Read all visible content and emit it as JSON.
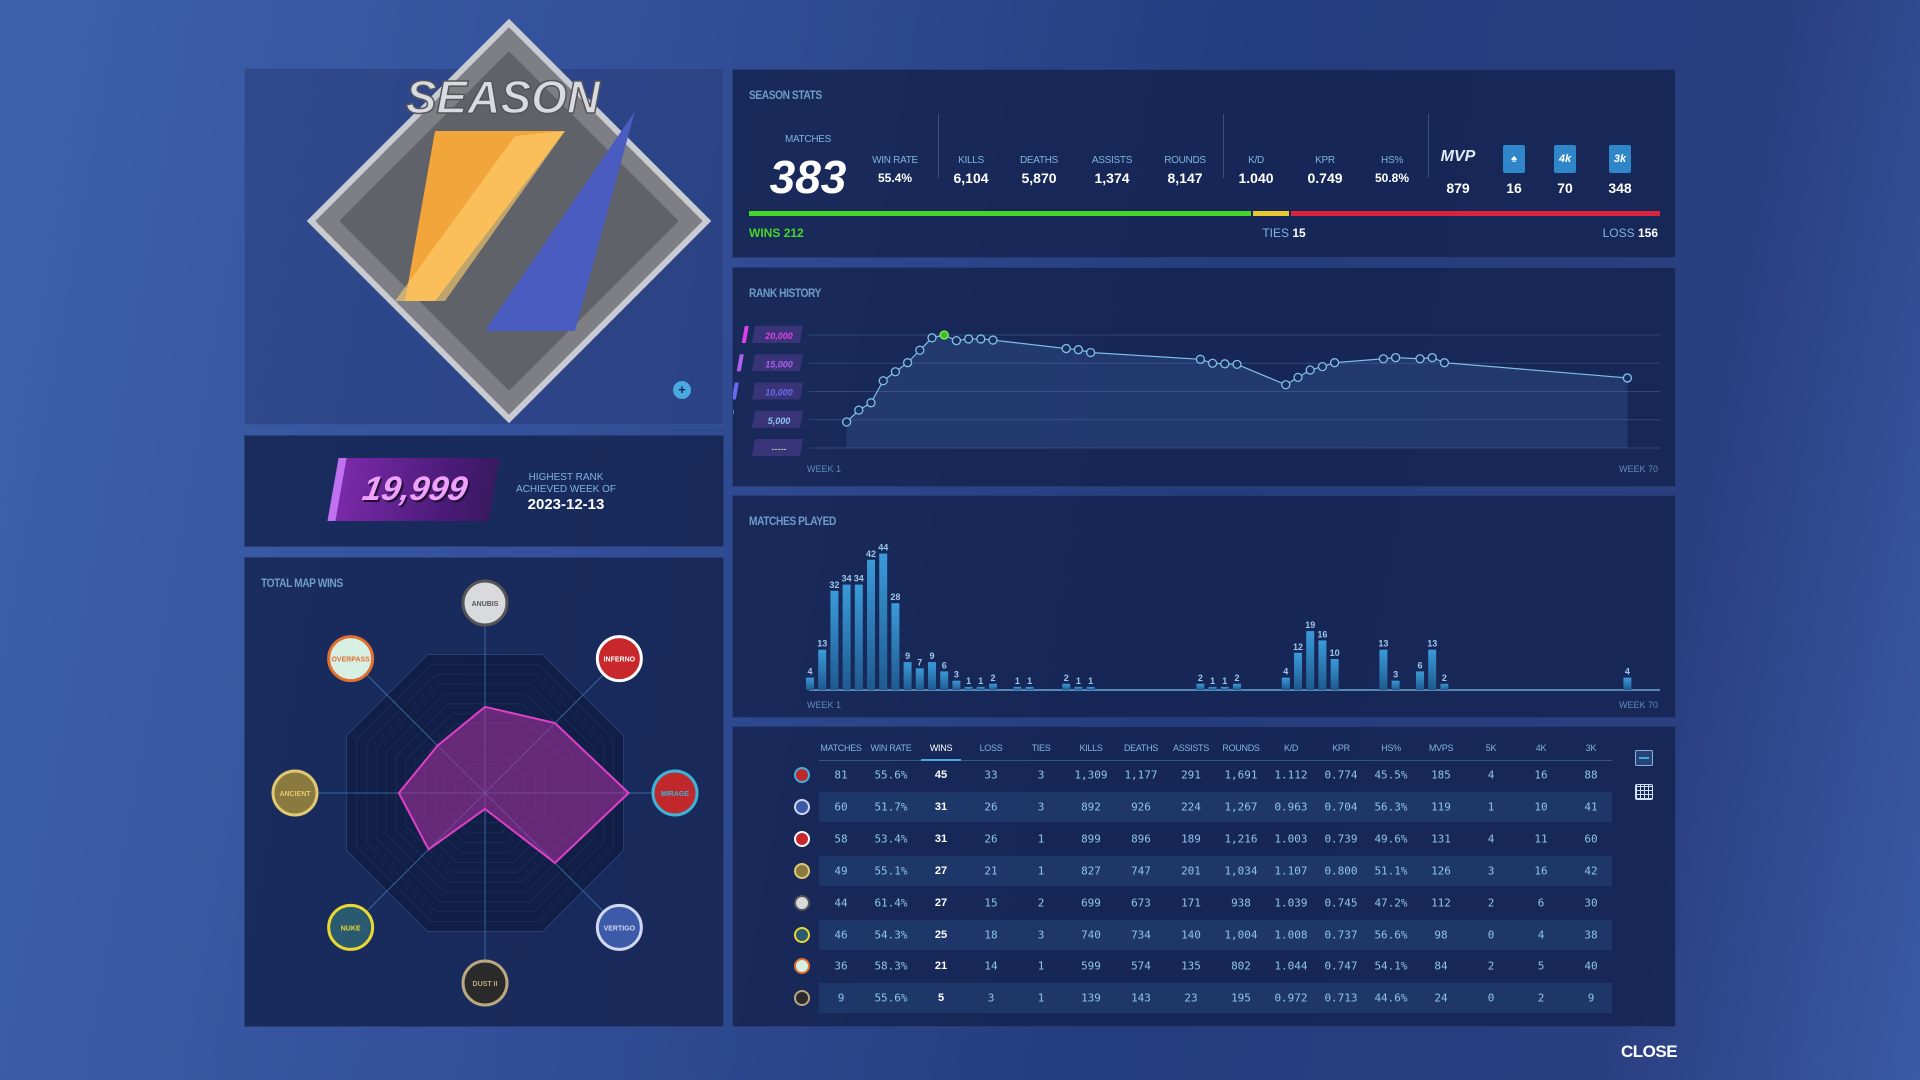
{
  "season_logo": {
    "text": "SEASON",
    "number": "1"
  },
  "highest_rank": {
    "value": "19,999",
    "label_line1": "HIGHEST RANK",
    "label_line2": "ACHIEVED WEEK OF",
    "date": "2023-12-13"
  },
  "season_stats": {
    "title": "SEASON STATS",
    "matches_label": "MATCHES",
    "matches": "383",
    "win_rate_label": "WIN RATE",
    "win_rate": "55.4%",
    "kills_label": "KILLS",
    "kills": "6,104",
    "deaths_label": "DEATHS",
    "deaths": "5,870",
    "assists_label": "ASSISTS",
    "assists": "1,374",
    "rounds_label": "ROUNDS",
    "rounds": "8,147",
    "kd_label": "K/D",
    "kd": "1.040",
    "kpr_label": "KPR",
    "kpr": "0.749",
    "hs_label": "HS%",
    "hs": "50.8%",
    "mvp_icon": "MVP",
    "mvp": "879",
    "ace_icon": "spade-icon",
    "ace": "16",
    "k4_icon": "4k",
    "k4": "70",
    "k3_icon": "3k",
    "k3": "348",
    "wins_label": "WINS",
    "wins": "212",
    "ties_label": "TIES",
    "ties": "15",
    "loss_label": "LOSS",
    "loss": "156",
    "colors": {
      "wins": "#45d62a",
      "ties": "#e8c832",
      "loss": "#d8243c"
    }
  },
  "rank_history": {
    "title": "RANK HISTORY",
    "tiers": [
      {
        "label": "20,000",
        "value": 20000,
        "color": "#e040e8"
      },
      {
        "label": "15,000",
        "value": 15000,
        "color": "#b060f0"
      },
      {
        "label": "10,000",
        "value": 10000,
        "color": "#6a6af0"
      },
      {
        "label": "5,000",
        "value": 5000,
        "color": "#8cc8f0"
      },
      {
        "label": "-----",
        "value": 0,
        "color": "#b0b0b0"
      }
    ],
    "start_label": "WEEK 1",
    "end_label": "WEEK 70"
  },
  "matches_played": {
    "title": "MATCHES PLAYED",
    "start_label": "WEEK 1",
    "end_label": "WEEK 70"
  },
  "total_map_wins": {
    "title": "TOTAL MAP WINS"
  },
  "table": {
    "headers": [
      "MATCHES",
      "WIN RATE",
      "WINS",
      "LOSS",
      "TIES",
      "KILLS",
      "DEATHS",
      "ASSISTS",
      "ROUNDS",
      "K/D",
      "KPR",
      "HS%",
      "MVPS",
      "5K",
      "4K",
      "3K"
    ],
    "rows": [
      {
        "map": "Mirage",
        "cells": [
          "81",
          "55.6%",
          "45",
          "33",
          "3",
          "1,309",
          "1,177",
          "291",
          "1,691",
          "1.112",
          "0.774",
          "45.5%",
          "185",
          "4",
          "16",
          "88"
        ]
      },
      {
        "map": "Vertigo",
        "cells": [
          "60",
          "51.7%",
          "31",
          "26",
          "3",
          "892",
          "926",
          "224",
          "1,267",
          "0.963",
          "0.704",
          "56.3%",
          "119",
          "1",
          "10",
          "41"
        ]
      },
      {
        "map": "Inferno",
        "cells": [
          "58",
          "53.4%",
          "31",
          "26",
          "1",
          "899",
          "896",
          "189",
          "1,216",
          "1.003",
          "0.739",
          "49.6%",
          "131",
          "4",
          "11",
          "60"
        ]
      },
      {
        "map": "Ancient",
        "cells": [
          "49",
          "55.1%",
          "27",
          "21",
          "1",
          "827",
          "747",
          "201",
          "1,034",
          "1.107",
          "0.800",
          "51.1%",
          "126",
          "3",
          "16",
          "42"
        ]
      },
      {
        "map": "Anubis",
        "cells": [
          "44",
          "61.4%",
          "27",
          "15",
          "2",
          "699",
          "673",
          "171",
          "938",
          "1.039",
          "0.745",
          "47.2%",
          "112",
          "2",
          "6",
          "30"
        ]
      },
      {
        "map": "Nuke",
        "cells": [
          "46",
          "54.3%",
          "25",
          "18",
          "3",
          "740",
          "734",
          "140",
          "1,004",
          "1.008",
          "0.737",
          "56.6%",
          "98",
          "0",
          "4",
          "38"
        ]
      },
      {
        "map": "Overpass",
        "cells": [
          "36",
          "58.3%",
          "21",
          "14",
          "1",
          "599",
          "574",
          "135",
          "802",
          "1.044",
          "0.747",
          "54.1%",
          "84",
          "2",
          "5",
          "40"
        ]
      },
      {
        "map": "Dust II",
        "cells": [
          "9",
          "55.6%",
          "5",
          "3",
          "1",
          "139",
          "143",
          "23",
          "195",
          "0.972",
          "0.713",
          "44.6%",
          "24",
          "0",
          "2",
          "9"
        ]
      }
    ]
  },
  "close_label": "CLOSE",
  "chart_data": [
    {
      "type": "line",
      "title": "RANK HISTORY",
      "x": [
        4,
        5,
        6,
        7,
        8,
        9,
        10,
        11,
        12,
        13,
        14,
        15,
        16,
        22,
        23,
        24,
        33,
        34,
        35,
        36,
        40,
        41,
        42,
        43,
        44,
        48,
        49,
        51,
        52,
        53,
        68
      ],
      "y": [
        4600,
        6700,
        8000,
        11900,
        13500,
        15100,
        17300,
        19500,
        19999,
        19000,
        19300,
        19300,
        19100,
        17600,
        17400,
        16900,
        15700,
        15000,
        14900,
        14800,
        11200,
        12500,
        13800,
        14400,
        15100,
        15800,
        16000,
        15800,
        16000,
        15100,
        12400
      ],
      "highlight_index": 8,
      "xlabel": "Week",
      "xlim": [
        1,
        70
      ],
      "ylim": [
        0,
        20000
      ],
      "yticks": [
        0,
        5000,
        10000,
        15000,
        20000
      ]
    },
    {
      "type": "bar",
      "title": "MATCHES PLAYED",
      "x": [
        1,
        2,
        3,
        4,
        5,
        6,
        7,
        8,
        9,
        10,
        11,
        12,
        13,
        14,
        15,
        16,
        18,
        19,
        22,
        23,
        24,
        33,
        34,
        35,
        36,
        40,
        41,
        42,
        43,
        44,
        48,
        49,
        51,
        52,
        53,
        68
      ],
      "values": [
        4,
        13,
        32,
        34,
        34,
        42,
        44,
        28,
        9,
        7,
        9,
        6,
        3,
        1,
        1,
        2,
        1,
        1,
        2,
        1,
        1,
        2,
        1,
        1,
        2,
        4,
        12,
        19,
        16,
        10,
        13,
        3,
        6,
        13,
        2,
        4
      ],
      "xlim": [
        1,
        70
      ],
      "xlabel": "Week"
    },
    {
      "type": "radar",
      "title": "TOTAL MAP WINS",
      "categories": [
        "Anubis",
        "Inferno",
        "Mirage",
        "Vertigo",
        "Dust II",
        "Nuke",
        "Ancient",
        "Overpass"
      ],
      "values": [
        27,
        31,
        45,
        31,
        5,
        25,
        27,
        21
      ],
      "colors": {
        "fill": "#a0309a",
        "stroke": "#e040c8"
      }
    }
  ]
}
